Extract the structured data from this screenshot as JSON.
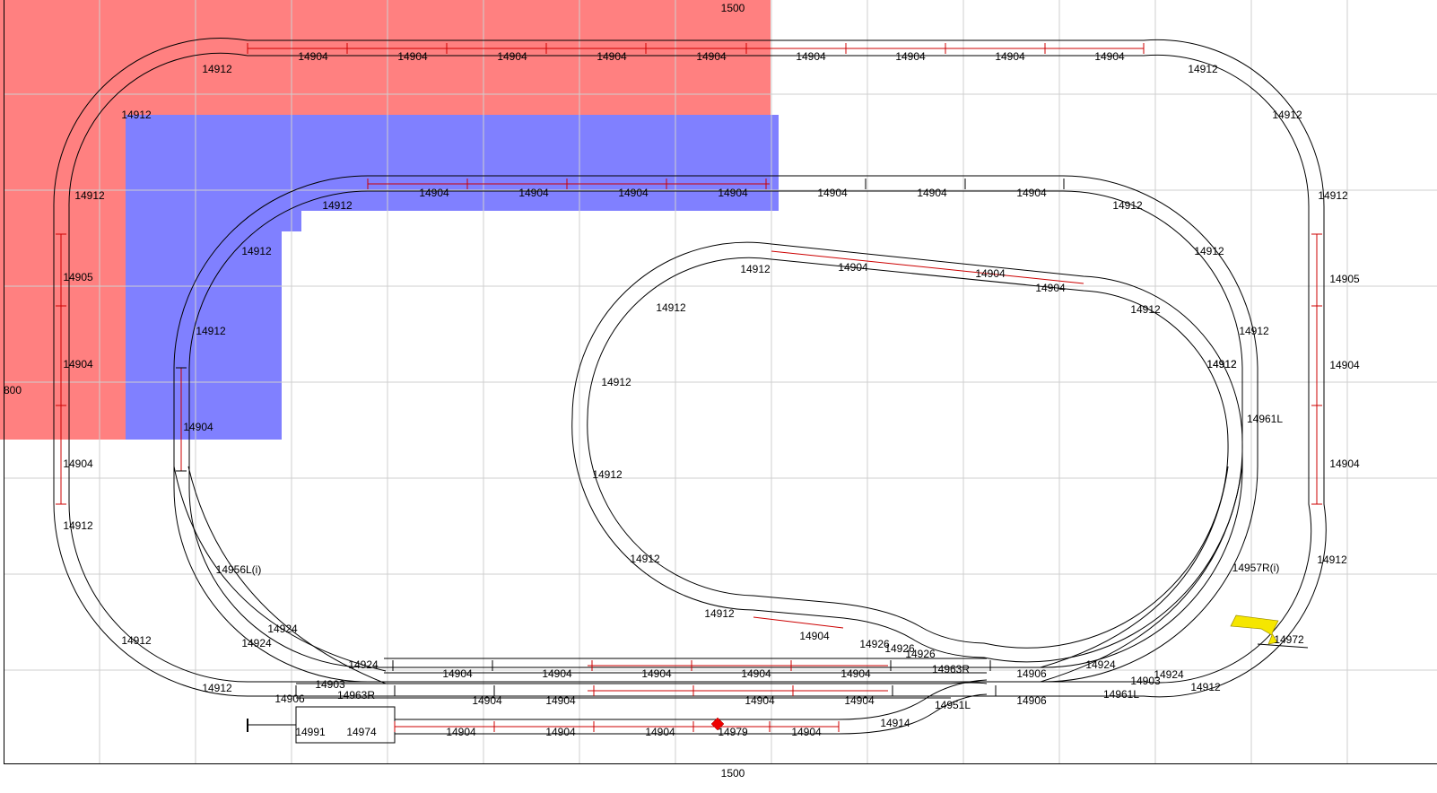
{
  "dimensions": {
    "width_label_top": "1500",
    "width_label_bottom": "1500",
    "height_label": "800"
  },
  "colors": {
    "grid": "#d0d0d0",
    "zone_red": "#ff8080",
    "zone_blue": "#8080ff",
    "track_black": "#000000",
    "track_red": "#cc0000",
    "marker_red": "#ee0000",
    "marker_yellow": "#f5e600"
  },
  "track_labels": {
    "outer": [
      "14904",
      "14904",
      "14904",
      "14904",
      "14904",
      "14904",
      "14904",
      "14904",
      "14904",
      "14912",
      "14912",
      "14912",
      "14905",
      "14904",
      "14904",
      "14912",
      "14912",
      "14912",
      "14912",
      "14905",
      "14904",
      "14904",
      "14912",
      "14912",
      "14912",
      "14912"
    ],
    "second": [
      "14904",
      "14904",
      "14904",
      "14904",
      "14904",
      "14904",
      "14904",
      "14912",
      "14912",
      "14912",
      "14912",
      "14912",
      "14904",
      "14912",
      "14912",
      "14961L",
      "14957R(i)",
      "14956L(i)"
    ],
    "inner": [
      "14904",
      "14904",
      "14904",
      "14912",
      "14912",
      "14912",
      "14912",
      "14912",
      "14912",
      "14912",
      "14912",
      "14904",
      "14926",
      "14926",
      "14926",
      "14963R"
    ],
    "yard_row1": [
      "14924",
      "14904",
      "14904",
      "14904",
      "14904",
      "14904",
      "14906",
      "14924"
    ],
    "yard_row2": [
      "14924",
      "14903",
      "14963R",
      "14904",
      "14904",
      "14904",
      "14904",
      "14906",
      "14961L",
      "14903",
      "14924",
      "14906"
    ],
    "yard_row3": [
      "14991",
      "14974",
      "14904",
      "14904",
      "14904",
      "14979",
      "14904",
      "14914",
      "14951L"
    ],
    "misc": [
      "14924",
      "14972"
    ]
  }
}
